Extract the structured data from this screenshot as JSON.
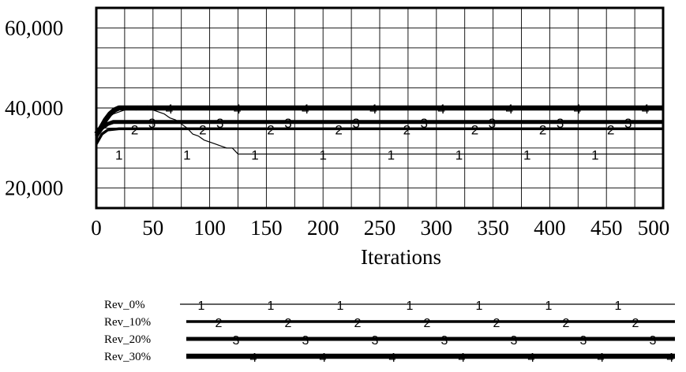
{
  "chart_data": {
    "type": "line",
    "xlabel": "Iterations",
    "ylabel": "",
    "xlim": [
      0,
      500
    ],
    "ylim": [
      15000,
      65000
    ],
    "grid": true,
    "x_ticks": [
      0,
      50,
      100,
      150,
      200,
      250,
      300,
      350,
      400,
      450,
      500
    ],
    "x_tick_labels": [
      "0",
      "50",
      "100",
      "150",
      "200",
      "250",
      "300",
      "350",
      "400",
      "450",
      "500"
    ],
    "y_ticks": [
      20000,
      40000,
      60000
    ],
    "y_tick_labels": [
      "20,000",
      "40,000",
      "60,000"
    ],
    "legend_position": "bottom",
    "series": [
      {
        "name": "Rev_0%",
        "marker": "1",
        "line_weight": "thin",
        "points": [
          [
            0,
            31500
          ],
          [
            3,
            34500
          ],
          [
            6,
            36000
          ],
          [
            10,
            37500
          ],
          [
            15,
            38500
          ],
          [
            20,
            39000
          ],
          [
            25,
            39500
          ],
          [
            30,
            39800
          ],
          [
            35,
            39500
          ],
          [
            40,
            40000
          ],
          [
            45,
            40500
          ],
          [
            50,
            39500
          ],
          [
            55,
            39000
          ],
          [
            60,
            38500
          ],
          [
            65,
            37500
          ],
          [
            70,
            37000
          ],
          [
            75,
            36000
          ],
          [
            80,
            35000
          ],
          [
            85,
            33500
          ],
          [
            90,
            33000
          ],
          [
            95,
            32000
          ],
          [
            100,
            31500
          ],
          [
            105,
            31000
          ],
          [
            110,
            30500
          ],
          [
            115,
            30000
          ],
          [
            120,
            30000
          ],
          [
            125,
            28500
          ],
          [
            500,
            28500
          ]
        ]
      },
      {
        "name": "Rev_10%",
        "marker": "2",
        "line_weight": "medium",
        "points": [
          [
            0,
            31000
          ],
          [
            5,
            33500
          ],
          [
            10,
            34500
          ],
          [
            20,
            34800
          ],
          [
            500,
            34800
          ]
        ]
      },
      {
        "name": "Rev_20%",
        "marker": "3",
        "line_weight": "thick",
        "points": [
          [
            0,
            33000
          ],
          [
            5,
            35000
          ],
          [
            10,
            36000
          ],
          [
            15,
            36500
          ],
          [
            500,
            36500
          ]
        ]
      },
      {
        "name": "Rev_30%",
        "marker": "4",
        "line_weight": "heavy",
        "points": [
          [
            0,
            33500
          ],
          [
            4,
            35000
          ],
          [
            8,
            37000
          ],
          [
            12,
            38500
          ],
          [
            16,
            39500
          ],
          [
            20,
            40000
          ],
          [
            500,
            40000
          ]
        ]
      }
    ]
  }
}
